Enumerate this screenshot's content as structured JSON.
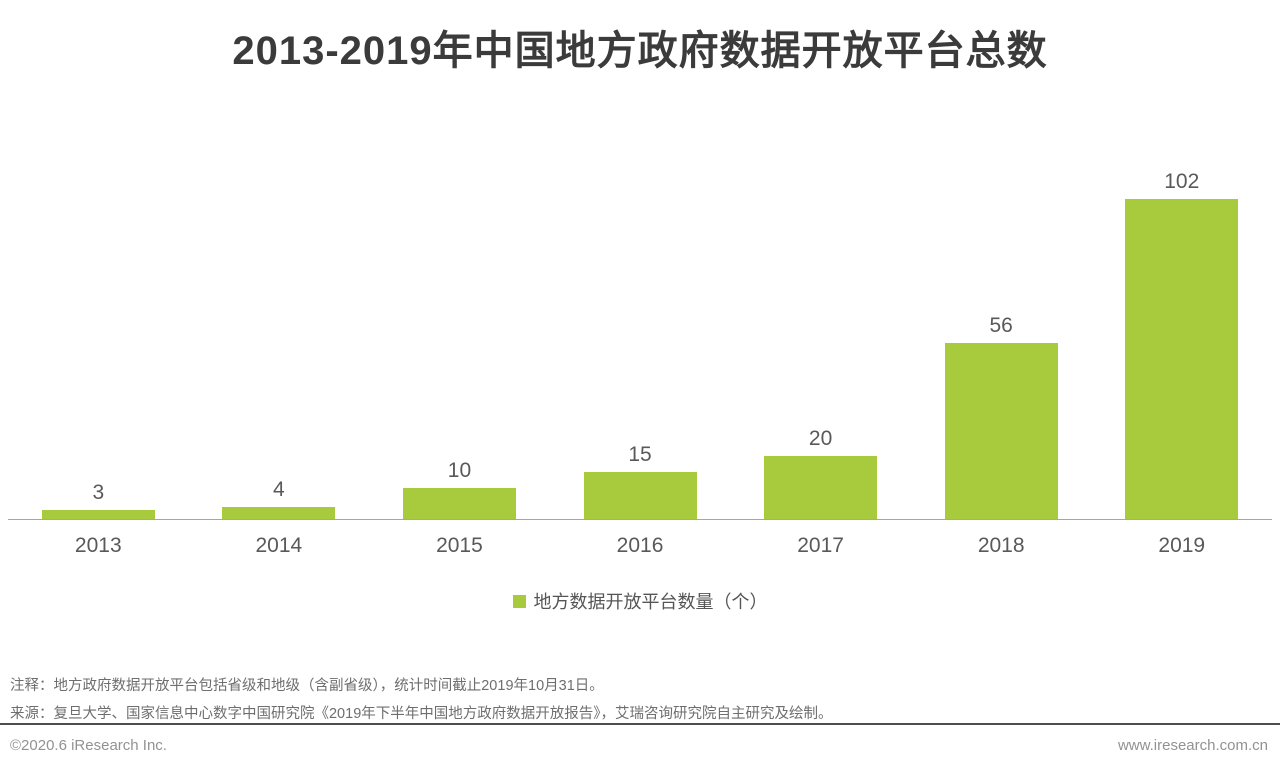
{
  "header": {
    "title": "2013-2019年中国地方政府数据开放平台总数"
  },
  "chart_data": {
    "type": "bar",
    "title": "2013-2019年中国地方政府数据开放平台总数",
    "categories": [
      "2013",
      "2014",
      "2015",
      "2016",
      "2017",
      "2018",
      "2019"
    ],
    "values": [
      3,
      4,
      10,
      15,
      20,
      56,
      102
    ],
    "series_name": "地方数据开放平台数量（个）",
    "xlabel": "",
    "ylabel": "",
    "ylim": [
      0,
      102
    ],
    "grid": false,
    "value_labels": true,
    "legend_position": "bottom",
    "bar_color": "#a8ca3d",
    "axis_line_color": "#a6a6a6"
  },
  "legend": {
    "label": "地方数据开放平台数量（个）",
    "swatch_color": "#a8ca3d"
  },
  "notes": {
    "annotation": "注释：地方政府数据开放平台包括省级和地级（含副省级），统计时间截止2019年10月31日。",
    "source": "来源：复旦大学、国家信息中心数字中国研究院《2019年下半年中国地方政府数据开放报告》，艾瑞咨询研究院自主研究及绘制。"
  },
  "footer": {
    "copyright": "©2020.6 iResearch Inc.",
    "website": "www.iresearch.com.cn"
  }
}
